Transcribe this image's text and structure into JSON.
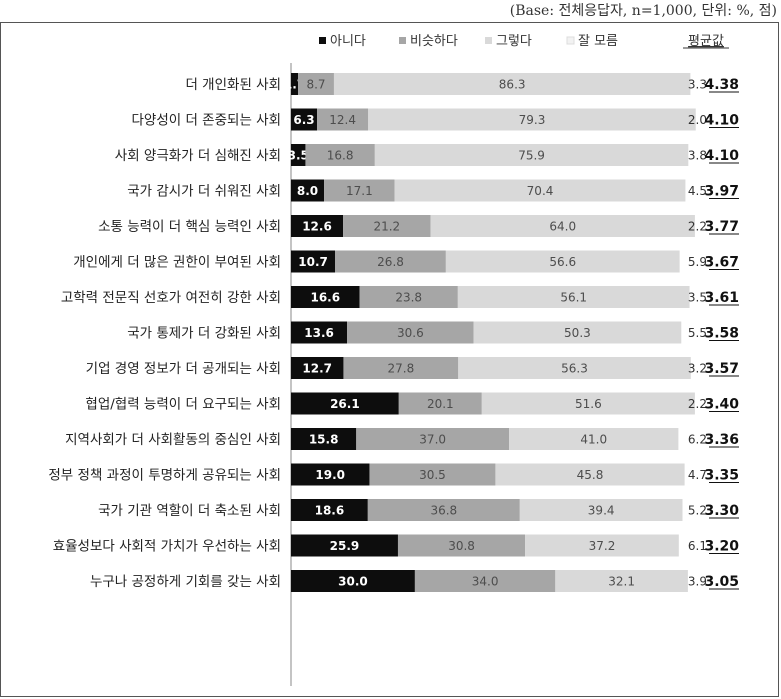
{
  "base_note": "(Base: 전체응답자, n=1,000, 단위: %, 점)",
  "chart_data": {
    "type": "bar",
    "orientation": "horizontal",
    "stacked": true,
    "xlim": [
      0,
      100
    ],
    "legend": {
      "placement": "top",
      "items": [
        "아니다",
        "비슷하다",
        "그렇다",
        "잘 모름"
      ],
      "extra_header": "평균값"
    },
    "categories": [
      "더 개인화된 사회",
      "다양성이 더 존중되는 사회",
      "사회 양극화가 더 심해진 사회",
      "국가 감시가 더 쉬워진 사회",
      "소통 능력이 더 핵심 능력인 사회",
      "개인에게 더 많은 권한이 부여된 사회",
      "고학력 전문직 선호가 여전히 강한 사회",
      "국가 통제가 더 강화된 사회",
      "기업 경영 정보가 더 공개되는 사회",
      "협업/협력 능력이 더 요구되는 사회",
      "지역사회가 더 사회활동의 중심인 사회",
      "정부 정책 과정이 투명하게 공유되는 사회",
      "국가 기관 역할이 더 축소된 사회",
      "효율성보다 사회적 가치가 우선하는 사회",
      "누구나 공정하게 기회를 갖는 사회"
    ],
    "series": [
      {
        "name": "아니다",
        "color": "#0d0d0d",
        "values": [
          1.7,
          6.3,
          3.5,
          8.0,
          12.6,
          10.7,
          16.6,
          13.6,
          12.7,
          26.1,
          15.8,
          19.0,
          18.6,
          25.9,
          30.0
        ]
      },
      {
        "name": "비슷하다",
        "color": "#a6a6a6",
        "values": [
          8.7,
          12.4,
          16.8,
          17.1,
          21.2,
          26.8,
          23.8,
          30.6,
          27.8,
          20.1,
          37.0,
          30.5,
          36.8,
          30.8,
          34.0
        ]
      },
      {
        "name": "그렇다",
        "color": "#d9d9d9",
        "values": [
          86.3,
          79.3,
          75.9,
          70.4,
          64.0,
          56.6,
          56.1,
          50.3,
          56.3,
          51.6,
          41.0,
          45.8,
          39.4,
          37.2,
          32.1
        ]
      },
      {
        "name": "잘 모름",
        "color": "#f2f2f2",
        "values": [
          3.3,
          2.0,
          3.8,
          4.5,
          2.2,
          5.9,
          3.5,
          5.5,
          3.2,
          2.2,
          6.2,
          4.7,
          5.2,
          6.1,
          3.9
        ]
      }
    ],
    "averages": [
      4.38,
      4.1,
      4.1,
      3.97,
      3.77,
      3.67,
      3.61,
      3.58,
      3.57,
      3.4,
      3.36,
      3.35,
      3.3,
      3.2,
      3.05
    ]
  }
}
